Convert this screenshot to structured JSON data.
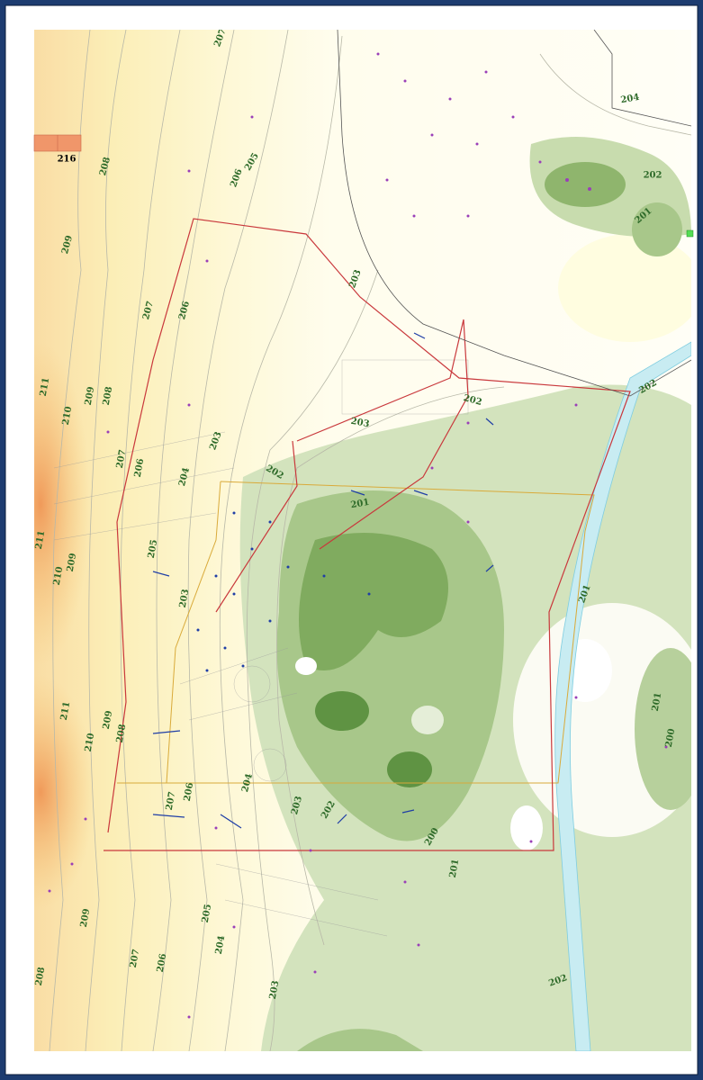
{
  "legend": {
    "label": "216"
  },
  "contour_labels": [
    "209",
    "208",
    "207",
    "206",
    "207",
    "206",
    "205",
    "211",
    "210",
    "209",
    "208",
    "207",
    "206",
    "205",
    "204",
    "203",
    "202",
    "203",
    "202",
    "201",
    "211",
    "210",
    "209",
    "203",
    "211",
    "210",
    "209",
    "208",
    "207",
    "206",
    "204",
    "203",
    "202",
    "201",
    "200",
    "201",
    "200",
    "209",
    "208",
    "207",
    "206",
    "205",
    "204",
    "203",
    "202",
    "201",
    "202",
    "204",
    "205",
    "202",
    "201",
    "203"
  ]
}
